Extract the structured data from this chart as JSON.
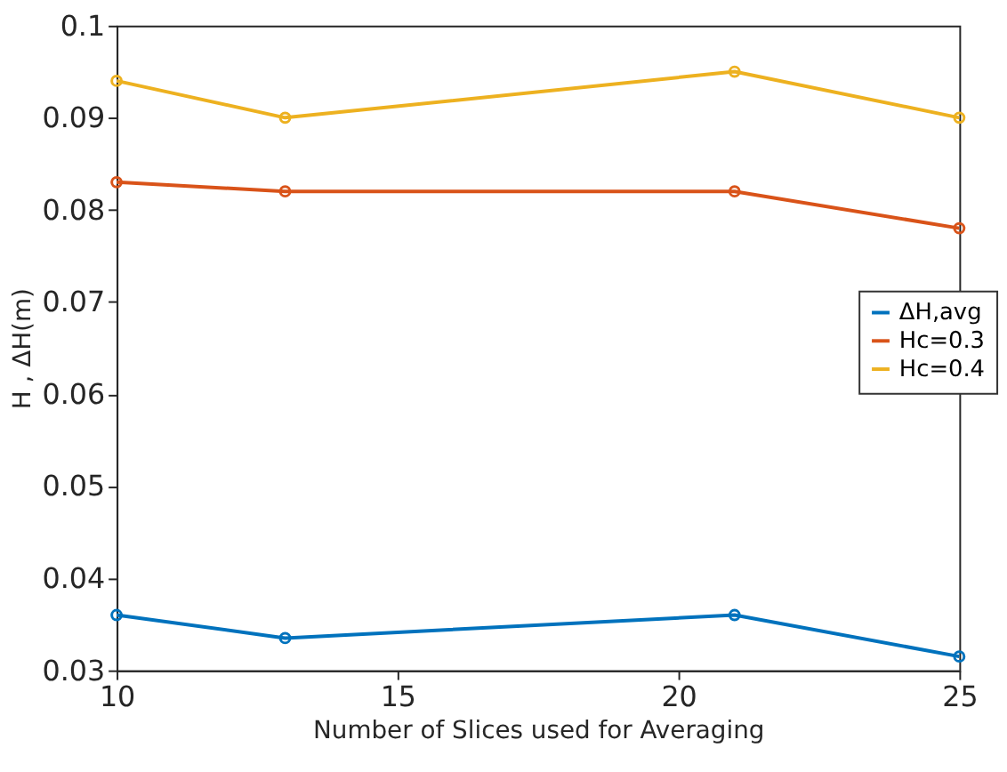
{
  "chart_data": {
    "type": "line",
    "xlabel": "Number of Slices used for Averaging",
    "ylabel": "H , ΔH(m)",
    "x": [
      10,
      13,
      21,
      25
    ],
    "series": [
      {
        "name": "ΔH,avg",
        "color": "#0072bd",
        "values": [
          0.036,
          0.0335,
          0.036,
          0.0315
        ]
      },
      {
        "name": "Hc=0.3",
        "color": "#d95319",
        "values": [
          0.083,
          0.082,
          0.082,
          0.078
        ]
      },
      {
        "name": "Hc=0.4",
        "color": "#edb120",
        "values": [
          0.094,
          0.09,
          0.095,
          0.09
        ]
      }
    ],
    "xlim": [
      10,
      25
    ],
    "xticks": [
      10,
      15,
      20,
      25
    ],
    "ylim": [
      0.03,
      0.1
    ],
    "yticks": [
      0.03,
      0.04,
      0.05,
      0.06,
      0.07,
      0.08,
      0.09,
      0.1
    ],
    "grid": false,
    "legend": "right",
    "marker": "circle",
    "line_style": "solid"
  }
}
